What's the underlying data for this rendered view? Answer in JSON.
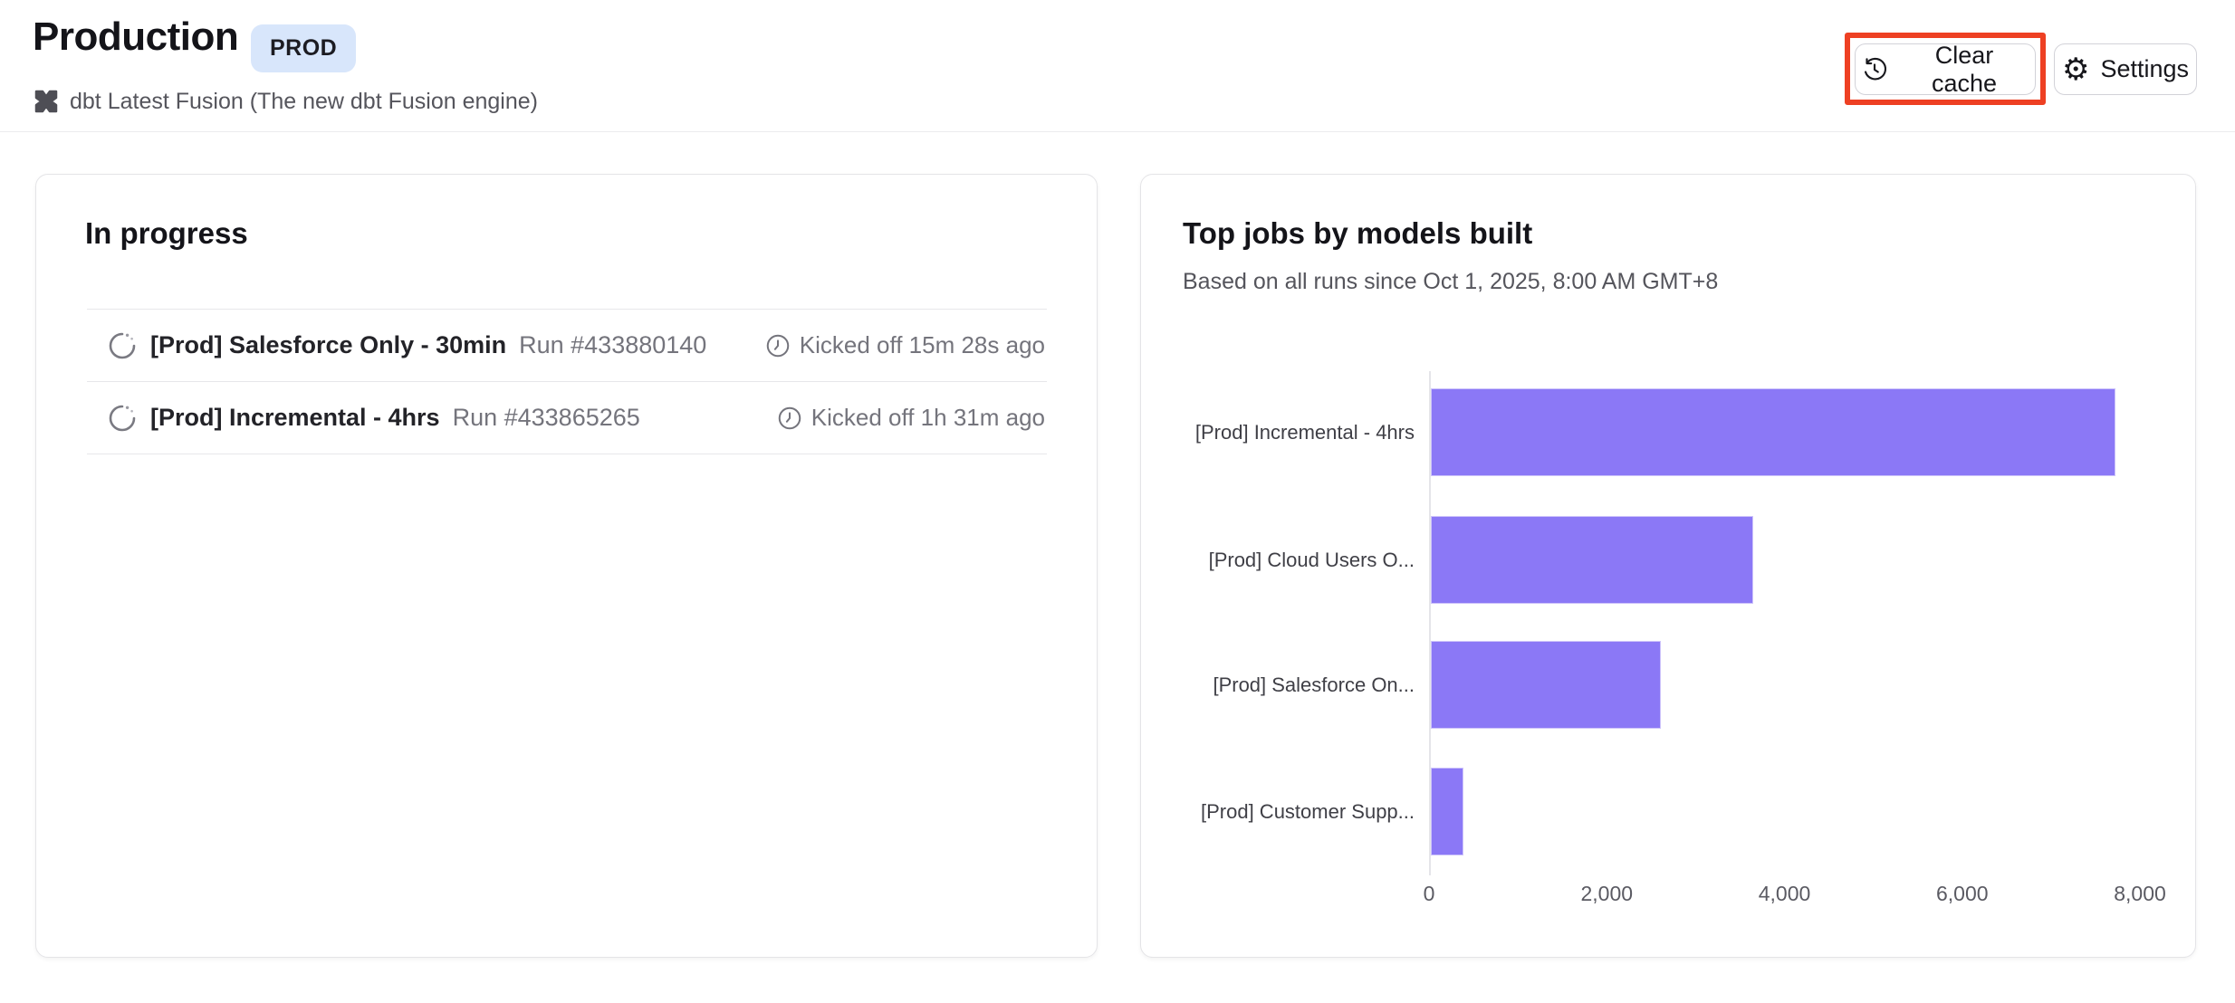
{
  "page": {
    "title": "Production",
    "env_badge": "PROD",
    "subtitle": "dbt Latest Fusion (The new dbt Fusion engine)"
  },
  "toolbar": {
    "clear_cache_label": "Clear cache",
    "settings_label": "Settings"
  },
  "in_progress": {
    "title": "In progress",
    "runs": [
      {
        "job": "[Prod] Salesforce Only - 30min",
        "run": "Run #433880140",
        "kicked_off": "Kicked off 15m 28s ago"
      },
      {
        "job": "[Prod] Incremental - 4hrs",
        "run": "Run #433865265",
        "kicked_off": "Kicked off 1h 31m ago"
      }
    ]
  },
  "top_jobs": {
    "title": "Top jobs by models built",
    "subtitle": "Based on all runs since Oct 1, 2025, 8:00 AM GMT+8"
  },
  "chart_data": {
    "type": "bar",
    "orientation": "horizontal",
    "title": "Top jobs by models built",
    "categories": [
      "[Prod] Incremental - 4hrs",
      "[Prod] Cloud Users O...",
      "[Prod] Salesforce On...",
      "[Prod] Customer Supp..."
    ],
    "values": [
      7700,
      3630,
      2590,
      370
    ],
    "xlabel": "",
    "ylabel": "",
    "xlim": [
      0,
      8000
    ],
    "xticks": [
      0,
      2000,
      4000,
      6000,
      8000
    ],
    "xtick_labels": [
      "0",
      "2,000",
      "4,000",
      "6,000",
      "8,000"
    ],
    "bar_color": "#8b78f6",
    "grid": false,
    "legend": false
  },
  "colors": {
    "bar_purple": "#8b78f6",
    "badge_bg": "#d8e6fb",
    "annotation_red": "#ee4023",
    "text_dark": "#141419",
    "text_gray": "#74747c"
  },
  "icons": {
    "subtitle_icon": "dbt-fusion-icon",
    "clear_cache_icon": "history-icon",
    "settings_icon": "gear-icon",
    "run_status_icon": "spinner-icon",
    "kicked_off_icon": "clock-icon"
  }
}
